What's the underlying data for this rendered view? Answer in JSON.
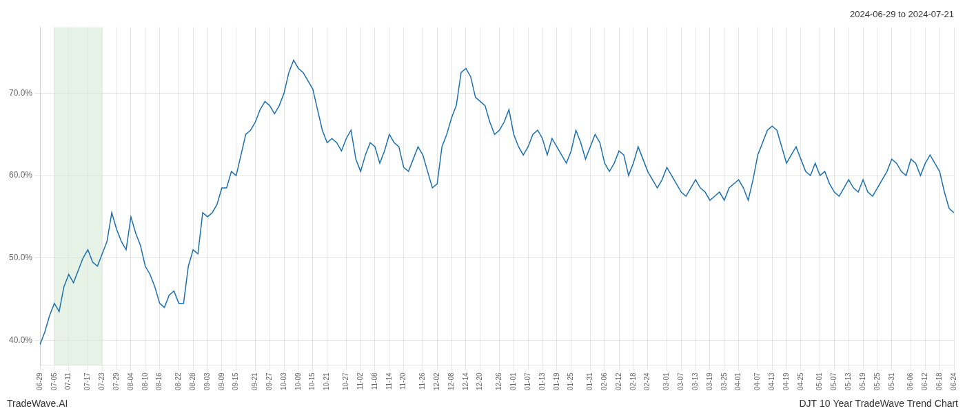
{
  "chart_data": {
    "type": "line",
    "title": "2024-06-29 to 2024-07-21",
    "annotations": [
      "TradeWave.AI",
      "DJT 10 Year TradeWave Trend Chart"
    ],
    "categories": [
      "06-29",
      null,
      null,
      "07-05",
      null,
      null,
      "07-11",
      null,
      null,
      null,
      "07-17",
      null,
      null,
      "07-23",
      null,
      null,
      "07-29",
      null,
      null,
      "08-04",
      null,
      null,
      "08-10",
      null,
      null,
      "08-16",
      null,
      null,
      null,
      "08-22",
      null,
      null,
      "08-28",
      null,
      null,
      "09-03",
      null,
      null,
      "09-09",
      null,
      null,
      "09-15",
      null,
      null,
      null,
      "09-21",
      null,
      null,
      "09-27",
      null,
      null,
      "10-03",
      null,
      null,
      "10-09",
      null,
      null,
      "10-15",
      null,
      null,
      "10-21",
      null,
      null,
      null,
      "10-27",
      null,
      null,
      "11-02",
      null,
      null,
      "11-08",
      null,
      null,
      "11-14",
      null,
      null,
      "11-20",
      null,
      null,
      null,
      "11-26",
      null,
      null,
      "12-02",
      null,
      null,
      "12-08",
      null,
      null,
      "12-14",
      null,
      null,
      "12-20",
      null,
      null,
      null,
      "12-26",
      null,
      null,
      "01-01",
      null,
      null,
      "01-07",
      null,
      null,
      "01-13",
      null,
      null,
      "01-19",
      null,
      null,
      "01-25",
      null,
      null,
      null,
      "01-31",
      null,
      null,
      "02-06",
      null,
      null,
      "02-12",
      null,
      null,
      "02-18",
      null,
      null,
      "02-24",
      null,
      null,
      null,
      "03-01",
      null,
      null,
      "03-07",
      null,
      null,
      "03-13",
      null,
      null,
      "03-19",
      null,
      null,
      "03-25",
      null,
      null,
      "04-01",
      null,
      null,
      null,
      "04-07",
      null,
      null,
      "04-13",
      null,
      null,
      "04-19",
      null,
      null,
      "04-25",
      null,
      null,
      null,
      "05-01",
      null,
      null,
      "05-07",
      null,
      null,
      "05-13",
      null,
      null,
      "05-19",
      null,
      null,
      "05-25",
      null,
      null,
      "05-31",
      null,
      null,
      null,
      "06-06",
      null,
      null,
      "06-12",
      null,
      null,
      "06-18",
      null,
      null,
      "06-24"
    ],
    "values": [
      39.5,
      41.0,
      43.0,
      44.5,
      43.5,
      46.5,
      48.0,
      47.0,
      48.5,
      50.0,
      51.0,
      49.5,
      49.0,
      50.5,
      52.0,
      55.5,
      53.5,
      52.0,
      51.0,
      55.0,
      53.0,
      51.5,
      49.0,
      48.0,
      46.5,
      44.5,
      44.0,
      45.5,
      46.0,
      44.5,
      44.5,
      49.0,
      51.0,
      50.5,
      55.5,
      55.0,
      55.5,
      56.5,
      58.5,
      58.5,
      60.5,
      60.0,
      62.5,
      65.0,
      65.5,
      66.5,
      68.0,
      69.0,
      68.5,
      67.5,
      68.5,
      70.0,
      72.5,
      74.0,
      73.0,
      72.5,
      71.5,
      70.5,
      68.0,
      65.5,
      64.0,
      64.5,
      64.0,
      63.0,
      64.5,
      65.5,
      62.0,
      60.5,
      62.5,
      64.0,
      63.5,
      61.5,
      63.0,
      65.0,
      64.0,
      63.5,
      61.0,
      60.5,
      62.0,
      63.5,
      62.5,
      60.5,
      58.5,
      59.0,
      63.5,
      65.0,
      67.0,
      68.5,
      72.5,
      73.0,
      72.0,
      69.5,
      69.0,
      68.5,
      66.5,
      65.0,
      65.5,
      66.5,
      68.0,
      65.0,
      63.5,
      62.5,
      63.5,
      65.0,
      65.5,
      64.5,
      62.5,
      64.5,
      63.5,
      62.5,
      61.5,
      63.0,
      65.5,
      64.0,
      62.0,
      63.5,
      65.0,
      64.0,
      61.5,
      60.5,
      61.5,
      63.0,
      62.5,
      60.0,
      61.5,
      63.5,
      62.0,
      60.5,
      59.5,
      58.5,
      59.5,
      61.0,
      60.0,
      59.0,
      58.0,
      57.5,
      58.5,
      59.5,
      58.5,
      58.0,
      57.0,
      57.5,
      58.0,
      57.0,
      58.5,
      59.0,
      59.5,
      58.5,
      57.0,
      59.5,
      62.5,
      64.0,
      65.5,
      66.0,
      65.5,
      63.5,
      61.5,
      62.5,
      63.5,
      62.0,
      60.5,
      60.0,
      61.5,
      60.0,
      60.5,
      59.0,
      58.0,
      57.5,
      58.5,
      59.5,
      58.5,
      58.0,
      59.5,
      58.0,
      57.5,
      58.5,
      59.5,
      60.5,
      62.0,
      61.5,
      60.5,
      60.0,
      62.0,
      61.5,
      60.0,
      61.5,
      62.5,
      61.5,
      60.5,
      58.0,
      56.0,
      55.5
    ],
    "color": "#1a6faf",
    "shade": {
      "start": "07-05",
      "end": "07-23",
      "color": "#d6ead6"
    },
    "ylim": [
      37.0,
      78.0
    ],
    "yticks": [
      {
        "value": 40.0,
        "label": "40.0%"
      },
      {
        "value": 50.0,
        "label": "50.0%"
      },
      {
        "value": 60.0,
        "label": "60.0%"
      },
      {
        "value": 70.0,
        "label": "70.0%"
      }
    ],
    "grid": true
  }
}
